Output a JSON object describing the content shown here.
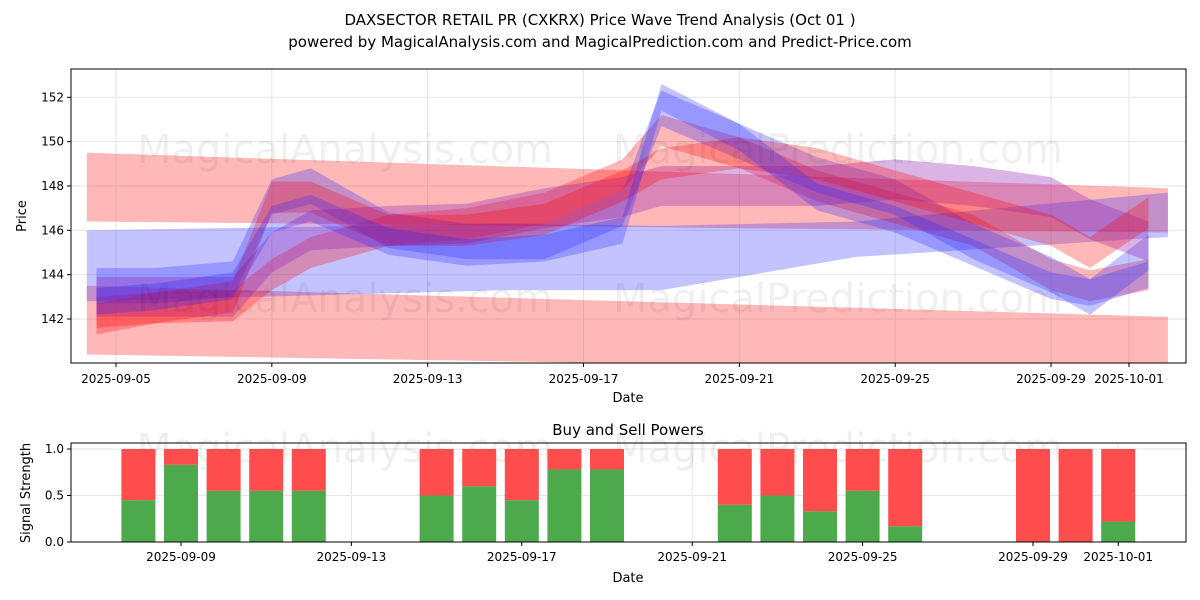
{
  "title_line1": "DAXSECTOR RETAIL PR (CXKRX) Price Wave Trend Analysis (Oct 01 )",
  "title_line2": "powered by MagicalAnalysis.com and MagicalPrediction.com and Predict-Price.com",
  "watermarks": [
    "MagicalAnalysis.com",
    "MagicalPrediction.com"
  ],
  "colors": {
    "buy": "#4caa4c",
    "sell": "#ff4d4d",
    "red_band": "#ff0000",
    "blue_band": "#0000ff"
  },
  "chart_data": [
    {
      "type": "area",
      "title": "",
      "xlabel": "Date",
      "ylabel": "Price",
      "base_date": "2025-09-05",
      "x_unit": "days since base_date",
      "yticks": [
        "142",
        "144",
        "146",
        "148",
        "150",
        "152"
      ],
      "ytick_values": [
        142,
        144,
        146,
        148,
        150,
        152
      ],
      "xticks": [
        {
          "label": "2025-09-05",
          "day": 0
        },
        {
          "label": "2025-09-09",
          "day": 4
        },
        {
          "label": "2025-09-13",
          "day": 8
        },
        {
          "label": "2025-09-17",
          "day": 12
        },
        {
          "label": "2025-09-21",
          "day": 16
        },
        {
          "label": "2025-09-25",
          "day": 20
        },
        {
          "label": "2025-09-29",
          "day": 24
        },
        {
          "label": "2025-10-01",
          "day": 26
        }
      ],
      "xlim": [
        -1.15,
        27.4
      ],
      "ylim": [
        140.0,
        153.3
      ],
      "grid": true,
      "bands": [
        {
          "name": "red-upper-channel",
          "color": "red",
          "x": [
            -0.75,
            27
          ],
          "upper": [
            149.5,
            147.9
          ],
          "lower": [
            146.4,
            145.9
          ]
        },
        {
          "name": "red-lower-channel",
          "color": "red",
          "x": [
            -0.75,
            27
          ],
          "upper": [
            143.5,
            142.1
          ],
          "lower": [
            140.4,
            139.6
          ]
        },
        {
          "name": "blue-channel",
          "color": "blue",
          "x": [
            -0.75,
            10,
            14,
            19,
            27
          ],
          "upper": [
            146.0,
            146.3,
            146.2,
            146.4,
            147.7
          ],
          "lower": [
            142.8,
            143.3,
            143.3,
            144.8,
            145.7
          ]
        }
      ],
      "waves": {
        "x": [
          -0.5,
          1,
          3,
          4,
          5,
          7,
          9,
          11,
          13,
          14,
          16,
          18,
          20,
          22,
          24,
          25,
          26.5
        ],
        "series": [
          {
            "name": "wave-red-1",
            "color": "red",
            "halfwidth": 0.7,
            "values": [
              142.3,
              142.5,
              142.6,
              144.0,
              145.0,
              146.0,
              146.3,
              147.0,
              148.5,
              150.5,
              149.5,
              148.0,
              147.0,
              146.0,
              144.0,
              143.5,
              144.0
            ]
          },
          {
            "name": "wave-blue-1",
            "color": "blue",
            "halfwidth": 0.8,
            "values": [
              143.5,
              143.5,
              143.8,
              147.5,
              148.0,
              146.0,
              145.5,
              145.5,
              147.0,
              151.5,
              150.0,
              148.5,
              147.5,
              145.5,
              144.0,
              143.0,
              145.0
            ]
          },
          {
            "name": "wave-purple-1",
            "color": "purple",
            "halfwidth": 0.9,
            "values": [
              143.0,
              143.0,
              143.0,
              145.0,
              146.0,
              146.2,
              146.3,
              147.0,
              147.5,
              148.0,
              148.0,
              148.0,
              148.3,
              148.0,
              147.5,
              146.5,
              145.5
            ]
          },
          {
            "name": "wave-red-2",
            "color": "red",
            "halfwidth": 0.7,
            "values": [
              142.0,
              142.5,
              143.0,
              147.5,
              147.5,
              146.0,
              146.0,
              146.5,
              148.0,
              149.0,
              149.5,
              149.0,
              148.0,
              147.0,
              146.0,
              145.0,
              146.8
            ]
          },
          {
            "name": "wave-blue-2",
            "color": "blue",
            "halfwidth": 0.6,
            "values": [
              142.8,
              143.0,
              143.5,
              146.5,
              147.0,
              145.5,
              145.0,
              145.2,
              146.0,
              152.0,
              150.2,
              147.5,
              146.5,
              145.0,
              143.5,
              143.2,
              144.0
            ]
          }
        ]
      }
    },
    {
      "type": "bar",
      "title": "Buy and Sell Powers",
      "xlabel": "Date",
      "ylabel": "Signal Strength",
      "ylim": [
        0,
        1.05
      ],
      "yticks": [
        "0.0",
        "0.5",
        "1.0"
      ],
      "ytick_values": [
        0,
        0.5,
        1.0
      ],
      "xticks": [
        {
          "label": "2025-09-09",
          "day": 4
        },
        {
          "label": "2025-09-13",
          "day": 8
        },
        {
          "label": "2025-09-17",
          "day": 12
        },
        {
          "label": "2025-09-21",
          "day": 16
        },
        {
          "label": "2025-09-25",
          "day": 20
        },
        {
          "label": "2025-09-29",
          "day": 24
        },
        {
          "label": "2025-10-01",
          "day": 26
        }
      ],
      "categories": [
        "2025-09-08",
        "2025-09-09",
        "2025-09-10",
        "2025-09-11",
        "2025-09-12",
        "2025-09-15",
        "2025-09-16",
        "2025-09-17",
        "2025-09-18",
        "2025-09-19",
        "2025-09-22",
        "2025-09-23",
        "2025-09-24",
        "2025-09-25",
        "2025-09-26",
        "2025-09-29",
        "2025-09-30",
        "2025-10-01"
      ],
      "days": [
        3,
        4,
        5,
        6,
        7,
        10,
        11,
        12,
        13,
        14,
        17,
        18,
        19,
        20,
        21,
        24,
        25,
        26
      ],
      "series": [
        {
          "name": "Buy",
          "values": [
            0.45,
            0.83,
            0.55,
            0.55,
            0.55,
            0.5,
            0.6,
            0.45,
            0.78,
            0.78,
            0.4,
            0.5,
            0.33,
            0.55,
            0.17,
            0,
            0,
            0.22
          ]
        },
        {
          "name": "Sell",
          "values": [
            0.55,
            0.17,
            0.45,
            0.45,
            0.45,
            0.5,
            0.4,
            0.55,
            0.22,
            0.22,
            0.6,
            0.5,
            0.67,
            0.45,
            0.83,
            1,
            1,
            0.78
          ]
        }
      ]
    }
  ]
}
